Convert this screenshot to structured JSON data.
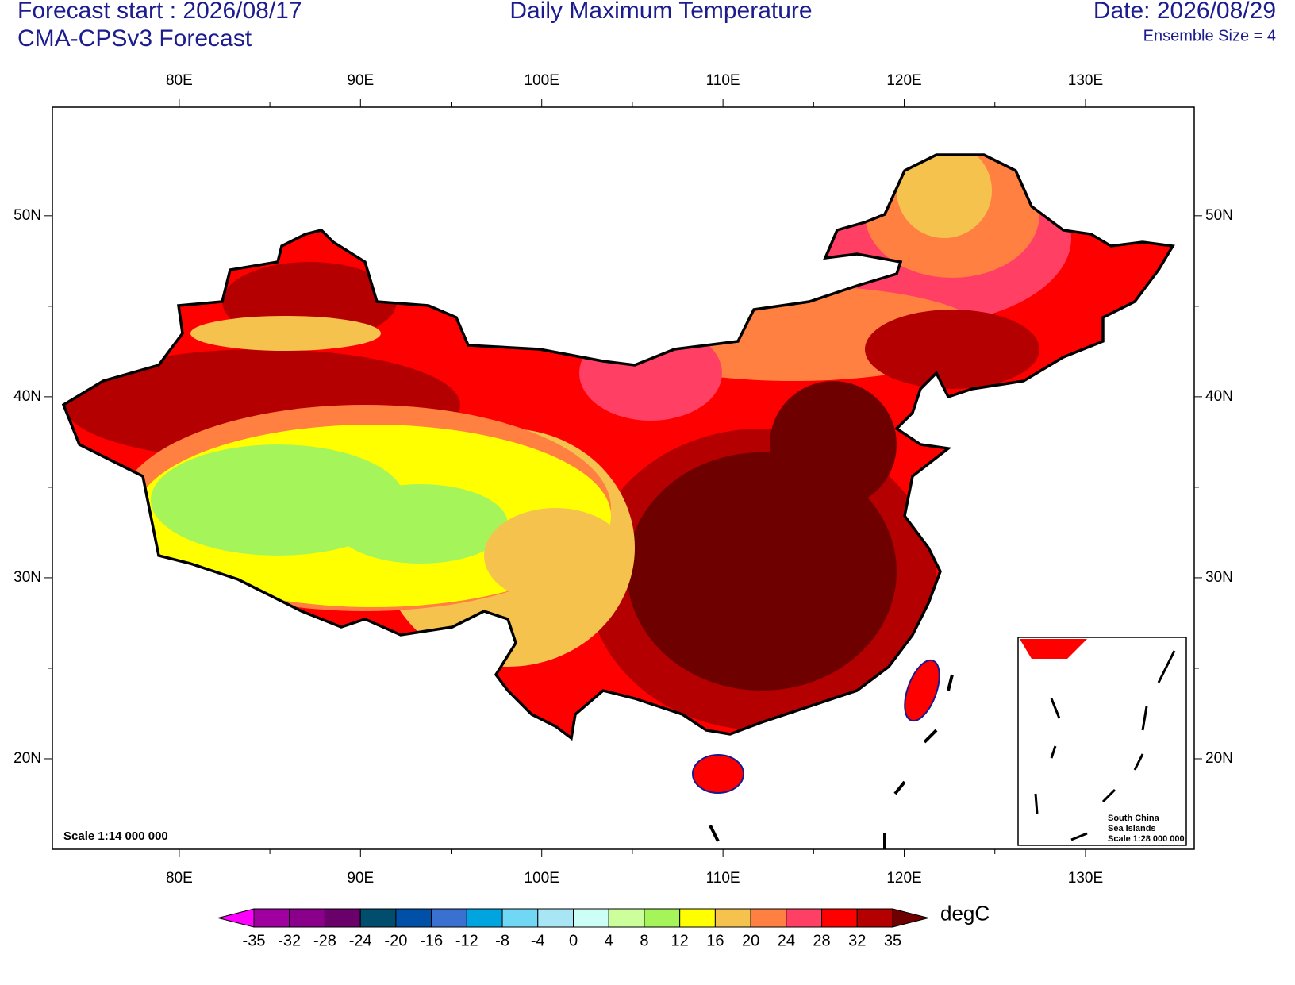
{
  "header": {
    "forecast_start": "Forecast start : 2026/08/17",
    "model": "CMA-CPSv3 Forecast",
    "title": "Daily Maximum Temperature",
    "date": "Date: 2026/08/29",
    "ensemble": "Ensemble Size = 4"
  },
  "map": {
    "lonlim": [
      73,
      136
    ],
    "latlim": [
      15,
      56
    ],
    "lon_ticks": [
      {
        "value": 80,
        "label": "80E"
      },
      {
        "value": 90,
        "label": "90E"
      },
      {
        "value": 100,
        "label": "100E"
      },
      {
        "value": 110,
        "label": "110E"
      },
      {
        "value": 120,
        "label": "120E"
      },
      {
        "value": 130,
        "label": "130E"
      }
    ],
    "lat_ticks": [
      {
        "value": 20,
        "label": "20N"
      },
      {
        "value": 30,
        "label": "30N"
      },
      {
        "value": 40,
        "label": "40N"
      },
      {
        "value": 50,
        "label": "50N"
      }
    ],
    "scale": "Scale 1:14 000 000",
    "inset": [
      "South China",
      "Sea Islands",
      "Scale 1:28 000 000"
    ]
  },
  "colorbar": {
    "levels": [
      -35,
      -32,
      -28,
      -24,
      -20,
      -16,
      -12,
      -8,
      -4,
      0,
      4,
      8,
      12,
      16,
      20,
      24,
      28,
      32,
      35
    ],
    "colors": [
      "#ff00ff",
      "#a000a0",
      "#8b008b",
      "#6a006a",
      "#004d6e",
      "#0050a8",
      "#3a70d0",
      "#00a5e0",
      "#70d8f5",
      "#a8e6f5",
      "#ccfff5",
      "#ccff9c",
      "#a5f55a",
      "#ffff00",
      "#f5c24d",
      "#ff8040",
      "#ff4064",
      "#ff0000",
      "#b40000",
      "#6e0000"
    ],
    "unit": "degC"
  }
}
